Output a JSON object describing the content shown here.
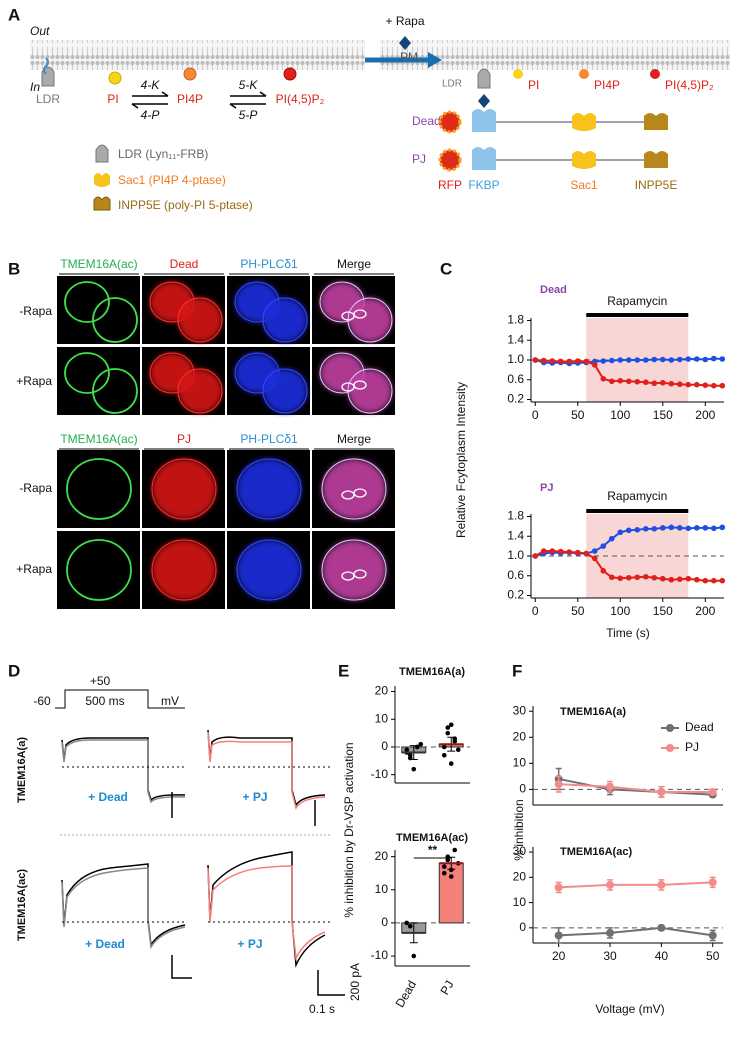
{
  "panel_labels": [
    "A",
    "B",
    "C",
    "D",
    "E",
    "F"
  ],
  "schematic": {
    "out": "Out",
    "in": "In",
    "rapa": "+ Rapa",
    "pm": "PM",
    "ldr": "LDR",
    "lipids": [
      "PI",
      "PI4P",
      "PI(4,5)P₂"
    ],
    "enzymes": [
      "4-K",
      "4-P",
      "5-K",
      "5-P"
    ],
    "legend": [
      "LDR (Lyn₁₁-FRB)",
      "Sac1 (PI4P 4-ptase)",
      "INPP5E (poly-PI 5-ptase)"
    ],
    "constructs": [
      "Dead",
      "PJ"
    ],
    "domains": [
      "RFP",
      "FKBP",
      "Sac1",
      "INPP5E"
    ]
  },
  "imaging": {
    "sets": [
      {
        "columns": [
          "TMEM16A(ac)",
          "Dead",
          "PH-PLCδ1",
          "Merge"
        ]
      },
      {
        "columns": [
          "TMEM16A(ac)",
          "PJ",
          "PH-PLCδ1",
          "Merge"
        ]
      }
    ],
    "rows": [
      "-Rapa",
      "+Rapa"
    ]
  },
  "traces": {
    "protocol": [
      "-60",
      "+50",
      "500 ms",
      "mV"
    ],
    "rows": [
      "TMEM16A(a)",
      "TMEM16A(ac)"
    ],
    "conditions": [
      "+ Dead",
      "+ PJ"
    ],
    "scale": [
      "200 pA",
      "0.1 s"
    ]
  },
  "chart_data": [
    {
      "type": "line",
      "title": "Dead",
      "title_color": "#8e44ad",
      "annotation": "Rapamycin",
      "ylabel": "Relative Fcytoplasm Intensity",
      "x": [
        0,
        10,
        20,
        30,
        40,
        50,
        60,
        70,
        80,
        90,
        100,
        110,
        120,
        130,
        140,
        150,
        160,
        170,
        180,
        190,
        200,
        210,
        220
      ],
      "series": [
        {
          "color": "#1f4fe0",
          "values": [
            1.0,
            0.95,
            0.94,
            0.95,
            0.93,
            0.94,
            0.95,
            0.97,
            0.98,
            0.99,
            1.0,
            1.0,
            1.0,
            1.0,
            1.01,
            1.01,
            1.0,
            1.01,
            1.02,
            1.02,
            1.01,
            1.03,
            1.02
          ]
        },
        {
          "color": "#e0201a",
          "values": [
            1.0,
            0.99,
            0.98,
            0.97,
            0.97,
            0.98,
            0.97,
            0.9,
            0.62,
            0.57,
            0.58,
            0.57,
            0.56,
            0.55,
            0.53,
            0.54,
            0.52,
            0.51,
            0.5,
            0.5,
            0.49,
            0.48,
            0.48
          ]
        }
      ],
      "xlim": [
        -5,
        222
      ],
      "xticks": [
        0,
        50,
        100,
        150,
        200
      ],
      "ylim": [
        0.15,
        1.85
      ],
      "yticks": [
        0.2,
        0.6,
        {
          "value": 1,
          "label": "1.0"
        },
        1.4,
        1.8
      ],
      "shade": [
        60,
        180
      ],
      "reference": 1
    },
    {
      "type": "line",
      "title": "PJ",
      "title_color": "#8e44ad",
      "annotation": "Rapamycin",
      "xlabel": "Time (s)",
      "x": [
        0,
        10,
        20,
        30,
        40,
        50,
        60,
        70,
        80,
        90,
        100,
        110,
        120,
        130,
        140,
        150,
        160,
        170,
        180,
        190,
        200,
        210,
        220
      ],
      "series": [
        {
          "color": "#1f4fe0",
          "values": [
            1.0,
            1.05,
            1.07,
            1.06,
            1.07,
            1.05,
            1.05,
            1.1,
            1.2,
            1.35,
            1.48,
            1.52,
            1.53,
            1.55,
            1.55,
            1.57,
            1.58,
            1.57,
            1.56,
            1.57,
            1.57,
            1.56,
            1.58
          ]
        },
        {
          "color": "#e0201a",
          "values": [
            1.0,
            1.1,
            1.1,
            1.09,
            1.08,
            1.07,
            1.05,
            0.95,
            0.7,
            0.57,
            0.55,
            0.56,
            0.57,
            0.58,
            0.56,
            0.54,
            0.52,
            0.53,
            0.54,
            0.52,
            0.5,
            0.5,
            0.5
          ]
        }
      ],
      "xlim": [
        -5,
        222
      ],
      "xticks": [
        0,
        50,
        100,
        150,
        200
      ],
      "ylim": [
        0.15,
        1.85
      ],
      "yticks": [
        0.2,
        0.6,
        {
          "value": 1,
          "label": "1.0"
        },
        1.4,
        1.8
      ],
      "shade": [
        60,
        180
      ],
      "reference": 1
    },
    {
      "type": "bar",
      "title": "TMEM16A(a)",
      "ylabel": "% inhibition by Dr-VSP activation",
      "values": [
        -2,
        1
      ],
      "errors": [
        2.5,
        2.5
      ],
      "colors": [
        "#9a9a9a",
        "#f4807a"
      ],
      "points": [
        [
          -1,
          -3,
          -8,
          0,
          1,
          -2,
          -4
        ],
        [
          -3,
          5,
          8,
          2,
          -1,
          0,
          7,
          -6,
          3
        ]
      ],
      "ylim": [
        -13,
        22
      ],
      "yticks": [
        -10,
        0,
        10,
        20
      ],
      "reference": 0
    },
    {
      "type": "bar",
      "title": "TMEM16A(ac)",
      "categories": [
        "Dead",
        "PJ"
      ],
      "values": [
        -3,
        18
      ],
      "errors": [
        3,
        1.8
      ],
      "colors": [
        "#9a9a9a",
        "#f4807a"
      ],
      "points": [
        [
          0,
          -1,
          -10
        ],
        [
          15,
          20,
          16,
          22,
          18,
          17,
          19,
          14
        ]
      ],
      "annotation": "**",
      "ylim": [
        -13,
        22
      ],
      "yticks": [
        -10,
        0,
        10,
        20
      ],
      "reference": 0
    },
    {
      "type": "line",
      "title": "TMEM16A(a)",
      "ylabel": "% inhibition",
      "x": [
        20,
        30,
        40,
        50
      ],
      "series": [
        {
          "name": "Dead",
          "color": "#707070",
          "values": [
            4,
            0,
            -1,
            -2
          ],
          "errors": [
            4,
            2,
            2,
            1
          ]
        },
        {
          "name": "PJ",
          "color": "#f48b8b",
          "values": [
            2,
            1,
            -1,
            -1
          ],
          "errors": [
            3,
            2,
            2,
            1
          ]
        }
      ],
      "xlim": [
        15,
        52
      ],
      "ylim": [
        -6,
        32
      ],
      "yticks": [
        0,
        10,
        20,
        30
      ],
      "reference": 0,
      "legend": "upper right"
    },
    {
      "type": "line",
      "title": "TMEM16A(ac)",
      "xlabel": "Voltage (mV)",
      "x": [
        20,
        30,
        40,
        50
      ],
      "series": [
        {
          "name": "Dead",
          "color": "#707070",
          "values": [
            -3,
            -2,
            0,
            -3
          ],
          "errors": [
            3,
            2,
            1,
            2
          ]
        },
        {
          "name": "PJ",
          "color": "#f48b8b",
          "values": [
            16,
            17,
            17,
            18
          ],
          "errors": [
            2,
            2,
            2,
            2
          ]
        }
      ],
      "xlim": [
        15,
        52
      ],
      "xticks": [
        20,
        30,
        40,
        50
      ],
      "ylim": [
        -6,
        32
      ],
      "yticks": [
        0,
        10,
        20,
        30
      ],
      "reference": 0
    }
  ]
}
